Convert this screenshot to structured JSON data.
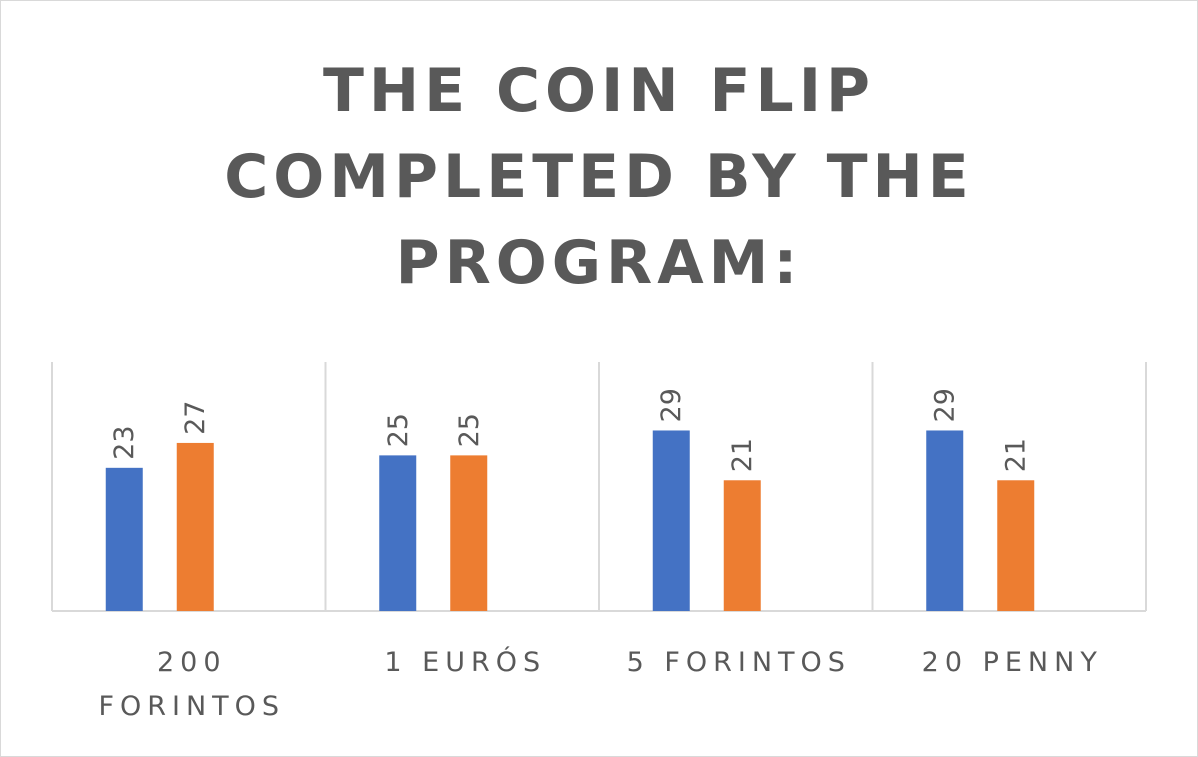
{
  "chart_data": {
    "type": "bar",
    "title": "THE COIN FLIP COMPLETED BY THE PROGRAM:",
    "title_lines": [
      "THE COIN FLIP",
      "COMPLETED BY THE",
      "PROGRAM:"
    ],
    "categories": [
      [
        "200",
        "FORINTOS"
      ],
      [
        "1 EURÓS"
      ],
      [
        "5 FORINTOS"
      ],
      [
        "20 PENNY"
      ]
    ],
    "series": [
      {
        "values": [
          23,
          25,
          29,
          29
        ],
        "color": "#4472C4"
      },
      {
        "values": [
          27,
          25,
          21,
          21
        ],
        "color": "#ED7D31"
      }
    ],
    "data_labels": true,
    "data_label_orientation": "vertical",
    "legend": "none",
    "grid": false,
    "ylim": [
      0,
      40
    ],
    "xlabel": "",
    "ylabel": ""
  }
}
